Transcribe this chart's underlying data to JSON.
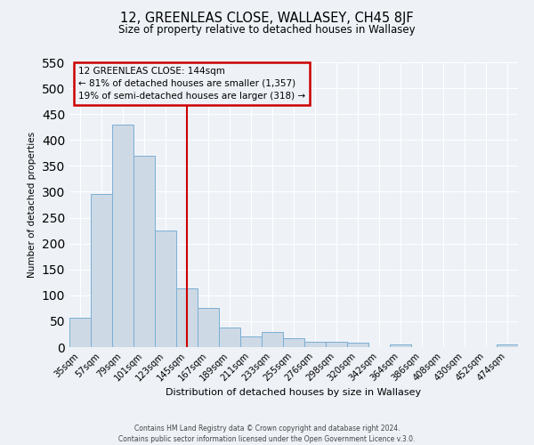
{
  "title": "12, GREENLEAS CLOSE, WALLASEY, CH45 8JF",
  "subtitle": "Size of property relative to detached houses in Wallasey",
  "xlabel": "Distribution of detached houses by size in Wallasey",
  "ylabel": "Number of detached properties",
  "bar_labels": [
    "35sqm",
    "57sqm",
    "79sqm",
    "101sqm",
    "123sqm",
    "145sqm",
    "167sqm",
    "189sqm",
    "211sqm",
    "233sqm",
    "255sqm",
    "276sqm",
    "298sqm",
    "320sqm",
    "342sqm",
    "364sqm",
    "386sqm",
    "408sqm",
    "430sqm",
    "452sqm",
    "474sqm"
  ],
  "bar_values": [
    57,
    295,
    430,
    370,
    225,
    113,
    76,
    38,
    21,
    29,
    18,
    10,
    11,
    9,
    0,
    5,
    0,
    0,
    0,
    0,
    5
  ],
  "bar_color": "#cdd9e5",
  "bar_edge_color": "#7aafd4",
  "vline_x": 5,
  "vline_color": "#cc0000",
  "ylim": [
    0,
    550
  ],
  "yticks": [
    0,
    50,
    100,
    150,
    200,
    250,
    300,
    350,
    400,
    450,
    500,
    550
  ],
  "annotation_title": "12 GREENLEAS CLOSE: 144sqm",
  "annotation_line1": "← 81% of detached houses are smaller (1,357)",
  "annotation_line2": "19% of semi-detached houses are larger (318) →",
  "annotation_box_color": "#cc0000",
  "footer_line1": "Contains HM Land Registry data © Crown copyright and database right 2024.",
  "footer_line2": "Contains public sector information licensed under the Open Government Licence v.3.0.",
  "background_color": "#eef2f7",
  "grid_color": "#ffffff"
}
